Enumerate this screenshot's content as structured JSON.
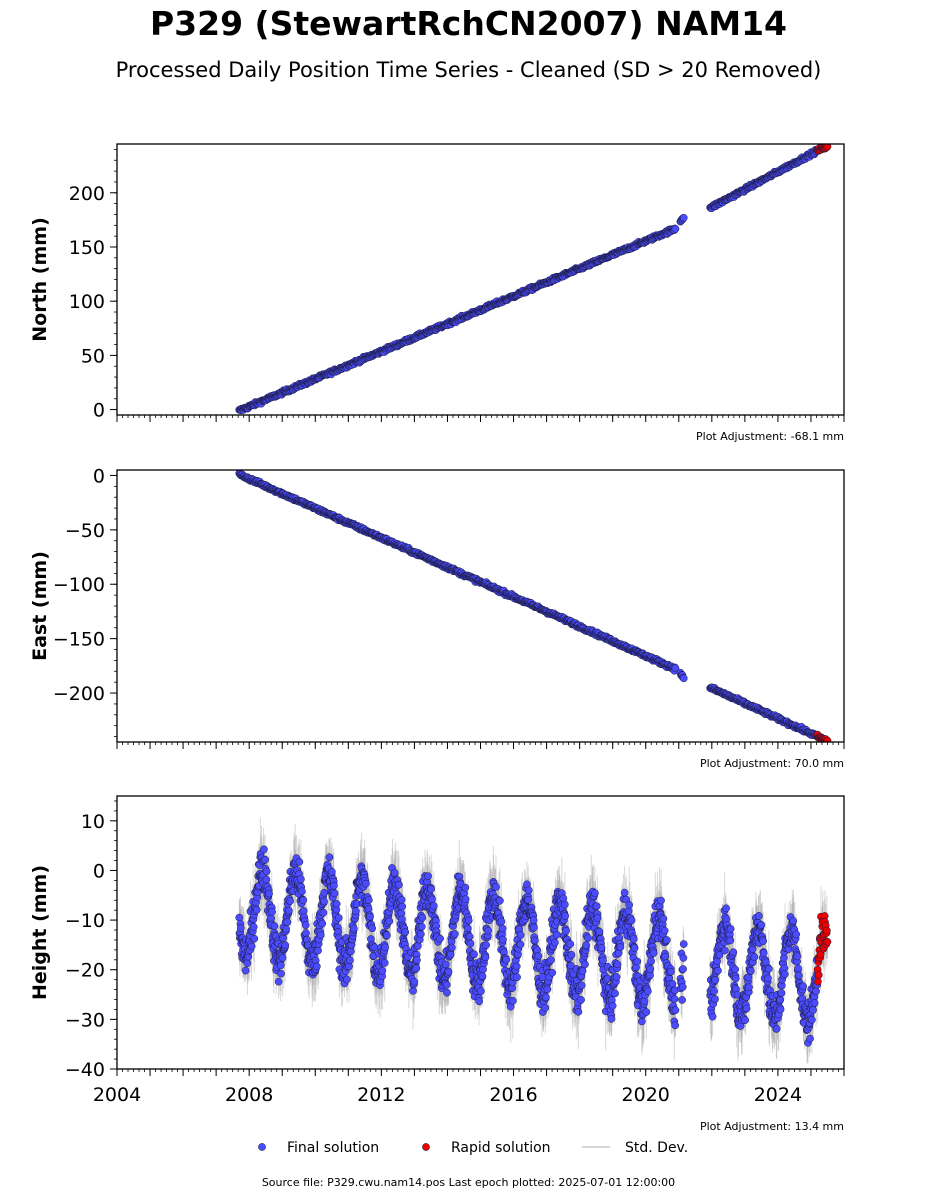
{
  "title": "P329 (StewartRchCN2007) NAM14",
  "subtitle": "Processed Daily Position Time Series - Cleaned (SD > 20 Removed)",
  "footer": {
    "source_prefix": "Source file: ",
    "source_file": "P329.cwu.nam14.pos",
    "last_epoch_prefix": "Last epoch plotted: ",
    "last_epoch": "2025-07-01 12:00:00"
  },
  "legend": {
    "items": [
      {
        "label": "Final solution",
        "color": "#4b4bff",
        "marker": "circle"
      },
      {
        "label": "Rapid solution",
        "color": "#ee0000",
        "marker": "circle"
      },
      {
        "label": "Std. Dev.",
        "color": "#c8c8c8",
        "marker": "line"
      }
    ]
  },
  "colors": {
    "final": "#4b4bff",
    "rapid": "#ee0000",
    "stddev": "#a8a8a8",
    "edge": "#1a1a3a"
  },
  "chart_data": [
    {
      "type": "scatter",
      "ylabel": "North (mm)",
      "xlim": [
        2004,
        2026
      ],
      "ylim": [
        -5,
        245
      ],
      "yticks": [
        0,
        50,
        100,
        150,
        200
      ],
      "ytick_labels": [
        "0",
        "50",
        "100",
        "150",
        "200"
      ],
      "adjustment_text": "Plot Adjustment: -68.1 mm",
      "segments": [
        {
          "x_start": 2007.7,
          "x_end": 2020.9,
          "y_start": -1.0,
          "y_end": 167.0,
          "kind": "final"
        },
        {
          "x_start": 2021.05,
          "x_end": 2021.15,
          "y_start": 174.0,
          "y_end": 178.0,
          "kind": "final"
        },
        {
          "x_start": 2021.95,
          "x_end": 2025.2,
          "y_start": 186.0,
          "y_end": 239.0,
          "kind": "final"
        },
        {
          "x_start": 2025.2,
          "x_end": 2025.5,
          "y_start": 239.0,
          "y_end": 243.0,
          "kind": "rapid"
        }
      ],
      "noise_mm": 1.5,
      "show_stddev": false
    },
    {
      "type": "scatter",
      "ylabel": "East (mm)",
      "xlim": [
        2004,
        2026
      ],
      "ylim": [
        -245,
        5
      ],
      "yticks": [
        0,
        -50,
        -100,
        -150,
        -200
      ],
      "ytick_labels": [
        "0",
        "−50",
        "−100",
        "−150",
        "−200"
      ],
      "adjustment_text": "Plot Adjustment: 70.0 mm",
      "segments": [
        {
          "x_start": 2007.7,
          "x_end": 2020.9,
          "y_start": 1.0,
          "y_end": -178.0,
          "kind": "final"
        },
        {
          "x_start": 2021.05,
          "x_end": 2021.15,
          "y_start": -182.0,
          "y_end": -186.0,
          "kind": "final"
        },
        {
          "x_start": 2021.95,
          "x_end": 2025.2,
          "y_start": -195.0,
          "y_end": -240.0,
          "kind": "final"
        },
        {
          "x_start": 2025.2,
          "x_end": 2025.5,
          "y_start": -240.0,
          "y_end": -244.0,
          "kind": "rapid"
        }
      ],
      "noise_mm": 1.5,
      "show_stddev": false
    },
    {
      "type": "scatter",
      "ylabel": "Height (mm)",
      "xlim": [
        2004,
        2026
      ],
      "ylim": [
        -40,
        15
      ],
      "yticks": [
        10,
        0,
        -10,
        -20,
        -30,
        -40
      ],
      "ytick_labels": [
        "10",
        "0",
        "−10",
        "−20",
        "−30",
        "−40"
      ],
      "xticks": [
        2004,
        2008,
        2012,
        2016,
        2020,
        2024
      ],
      "xtick_labels": [
        "2004",
        "2008",
        "2012",
        "2016",
        "2020",
        "2024"
      ],
      "adjustment_text": "Plot Adjustment: 13.4 mm",
      "seasonal": {
        "amplitude_mm": 9,
        "trend_start": -8,
        "trend_end": -22,
        "noise_mm": 4
      },
      "segments": [
        {
          "x_start": 2007.7,
          "x_end": 2020.9,
          "kind": "final"
        },
        {
          "x_start": 2021.05,
          "x_end": 2021.15,
          "kind": "final"
        },
        {
          "x_start": 2021.95,
          "x_end": 2025.2,
          "kind": "final"
        },
        {
          "x_start": 2025.2,
          "x_end": 2025.5,
          "kind": "rapid"
        }
      ],
      "show_stddev": true
    }
  ]
}
